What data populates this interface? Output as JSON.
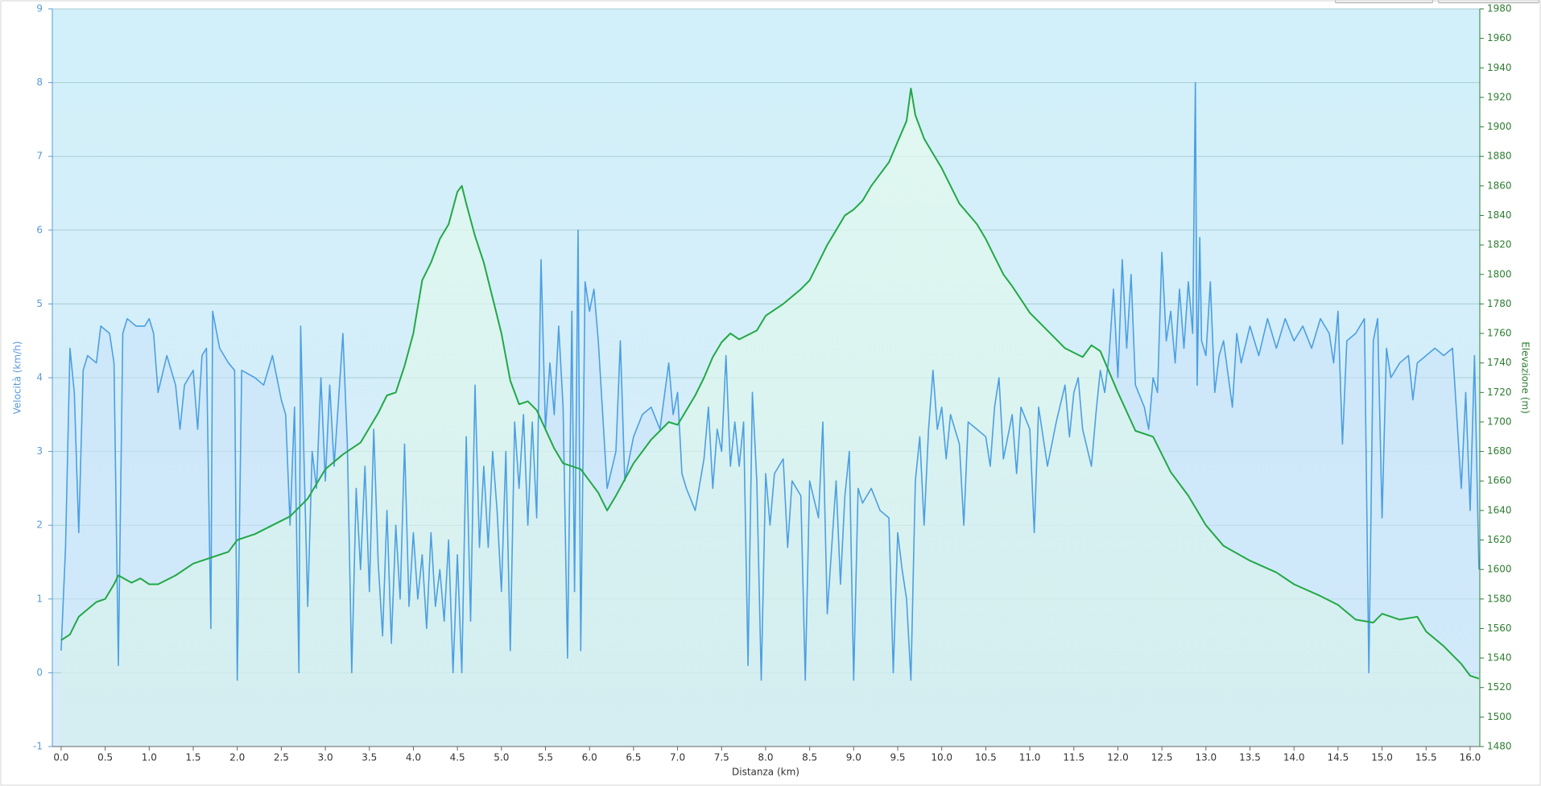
{
  "chart_data": {
    "type": "line",
    "x_label": "Distanza  (km)",
    "y_label": "Velocità (km/h)",
    "y2_label": "Elevazione (m)",
    "xlim": [
      -0.1,
      16.11
    ],
    "ylim": [
      -1,
      9
    ],
    "y2lim": [
      1480,
      1980
    ],
    "grid": true,
    "xticks": [
      {
        "value": 0,
        "label": "0.0"
      },
      0.5,
      {
        "value": 1,
        "label": "1.0"
      },
      1.5,
      {
        "value": 2,
        "label": "2.0"
      },
      2.5,
      {
        "value": 3,
        "label": "3.0"
      },
      3.5,
      {
        "value": 4,
        "label": "4.0"
      },
      4.5,
      {
        "value": 5,
        "label": "5.0"
      },
      5.5,
      {
        "value": 6,
        "label": "6.0"
      },
      6.5,
      {
        "value": 7,
        "label": "7.0"
      },
      7.5,
      {
        "value": 8,
        "label": "8.0"
      },
      8.5,
      {
        "value": 9,
        "label": "9.0"
      },
      9.5,
      {
        "value": 10,
        "label": "10.0"
      },
      10.5,
      {
        "value": 11,
        "label": "11.0"
      },
      11.5,
      {
        "value": 12,
        "label": "12.0"
      },
      12.5,
      {
        "value": 13,
        "label": "13.0"
      },
      13.5,
      {
        "value": 14,
        "label": "14.0"
      },
      14.5,
      {
        "value": 15,
        "label": "15.0"
      },
      15.5,
      {
        "value": 16,
        "label": "16.0"
      }
    ],
    "yticks": [
      -1,
      0,
      1,
      2,
      3,
      4,
      5,
      6,
      7,
      8,
      9
    ],
    "y2ticks": [
      1480,
      1500,
      1520,
      1540,
      1560,
      1580,
      1600,
      1620,
      1640,
      1660,
      1680,
      1700,
      1720,
      1740,
      1760,
      1780,
      1800,
      1820,
      1840,
      1860,
      1880,
      1900,
      1920,
      1940,
      1960,
      1980
    ],
    "series": [
      {
        "color": "#4c9fe2",
        "axis": "y",
        "x": [
          0.0,
          0.05,
          0.1,
          0.15,
          0.2,
          0.25,
          0.3,
          0.4,
          0.45,
          0.55,
          0.6,
          0.65,
          0.7,
          0.75,
          0.85,
          0.95,
          1.0,
          1.05,
          1.1,
          1.2,
          1.3,
          1.35,
          1.4,
          1.5,
          1.55,
          1.6,
          1.65,
          1.7,
          1.72,
          1.8,
          1.9,
          1.97,
          2.0,
          2.05,
          2.2,
          2.3,
          2.4,
          2.5,
          2.55,
          2.6,
          2.65,
          2.7,
          2.72,
          2.8,
          2.85,
          2.9,
          2.95,
          3.0,
          3.05,
          3.1,
          3.15,
          3.2,
          3.25,
          3.3,
          3.35,
          3.4,
          3.45,
          3.5,
          3.55,
          3.6,
          3.65,
          3.7,
          3.75,
          3.8,
          3.85,
          3.9,
          3.95,
          4.0,
          4.05,
          4.1,
          4.15,
          4.2,
          4.25,
          4.3,
          4.35,
          4.4,
          4.45,
          4.5,
          4.55,
          4.6,
          4.65,
          4.7,
          4.75,
          4.8,
          4.85,
          4.9,
          4.95,
          5.0,
          5.05,
          5.1,
          5.15,
          5.2,
          5.25,
          5.3,
          5.35,
          5.4,
          5.45,
          5.5,
          5.55,
          5.6,
          5.65,
          5.7,
          5.75,
          5.8,
          5.83,
          5.87,
          5.9,
          5.95,
          6.0,
          6.05,
          6.1,
          6.15,
          6.2,
          6.3,
          6.35,
          6.4,
          6.5,
          6.6,
          6.7,
          6.8,
          6.9,
          6.95,
          7.0,
          7.05,
          7.1,
          7.2,
          7.3,
          7.35,
          7.4,
          7.45,
          7.5,
          7.55,
          7.6,
          7.65,
          7.7,
          7.75,
          7.8,
          7.85,
          7.9,
          7.95,
          8.0,
          8.05,
          8.1,
          8.2,
          8.25,
          8.3,
          8.4,
          8.45,
          8.5,
          8.6,
          8.65,
          8.7,
          8.8,
          8.85,
          8.9,
          8.95,
          9.0,
          9.05,
          9.1,
          9.2,
          9.3,
          9.4,
          9.45,
          9.5,
          9.55,
          9.6,
          9.65,
          9.7,
          9.75,
          9.8,
          9.85,
          9.9,
          9.95,
          10.0,
          10.05,
          10.1,
          10.2,
          10.25,
          10.3,
          10.4,
          10.5,
          10.55,
          10.6,
          10.65,
          10.7,
          10.8,
          10.85,
          10.9,
          11.0,
          11.05,
          11.1,
          11.2,
          11.3,
          11.4,
          11.45,
          11.5,
          11.55,
          11.6,
          11.7,
          11.75,
          11.8,
          11.85,
          11.9,
          11.95,
          12.0,
          12.05,
          12.1,
          12.15,
          12.2,
          12.3,
          12.35,
          12.4,
          12.45,
          12.5,
          12.55,
          12.6,
          12.65,
          12.7,
          12.75,
          12.8,
          12.85,
          12.88,
          12.9,
          12.93,
          12.95,
          13.0,
          13.05,
          13.1,
          13.15,
          13.2,
          13.3,
          13.35,
          13.4,
          13.5,
          13.6,
          13.7,
          13.8,
          13.9,
          14.0,
          14.1,
          14.2,
          14.3,
          14.4,
          14.45,
          14.5,
          14.55,
          14.6,
          14.7,
          14.8,
          14.85,
          14.9,
          14.95,
          15.0,
          15.05,
          15.1,
          15.2,
          15.3,
          15.35,
          15.4,
          15.5,
          15.6,
          15.7,
          15.8,
          15.9,
          15.95,
          16.0,
          16.05,
          16.1
        ],
        "values": [
          0.3,
          1.7,
          4.4,
          3.8,
          1.9,
          4.1,
          4.3,
          4.2,
          4.7,
          4.6,
          4.2,
          0.1,
          4.6,
          4.8,
          4.7,
          4.7,
          4.8,
          4.6,
          3.8,
          4.3,
          3.9,
          3.3,
          3.9,
          4.1,
          3.3,
          4.3,
          4.4,
          0.6,
          4.9,
          4.4,
          4.2,
          4.1,
          -0.1,
          4.1,
          4.0,
          3.9,
          4.3,
          3.7,
          3.5,
          2.0,
          3.6,
          0.0,
          4.7,
          0.9,
          3.0,
          2.5,
          4.0,
          2.6,
          3.9,
          2.8,
          3.7,
          4.6,
          3.1,
          0.0,
          2.5,
          1.4,
          2.8,
          1.1,
          3.3,
          1.5,
          0.5,
          2.2,
          0.4,
          2.0,
          1.0,
          3.1,
          0.9,
          1.9,
          1.0,
          1.6,
          0.6,
          1.9,
          0.9,
          1.4,
          0.7,
          1.8,
          0.0,
          1.6,
          0.0,
          3.2,
          0.7,
          3.9,
          1.7,
          2.8,
          1.7,
          3.0,
          2.2,
          1.1,
          3.0,
          0.3,
          3.4,
          2.5,
          3.5,
          2.0,
          3.4,
          2.1,
          5.6,
          3.3,
          4.2,
          3.5,
          4.7,
          3.6,
          0.2,
          4.9,
          1.1,
          6.0,
          0.3,
          5.3,
          4.9,
          5.2,
          4.5,
          3.5,
          2.5,
          3.0,
          4.5,
          2.6,
          3.2,
          3.5,
          3.6,
          3.3,
          4.2,
          3.5,
          3.8,
          2.7,
          2.5,
          2.2,
          2.9,
          3.6,
          2.5,
          3.3,
          3.0,
          4.3,
          2.8,
          3.4,
          2.8,
          3.4,
          0.1,
          3.8,
          2.6,
          -0.1,
          2.7,
          2.0,
          2.7,
          2.9,
          1.7,
          2.6,
          2.4,
          -0.1,
          2.6,
          2.1,
          3.4,
          0.8,
          2.6,
          1.2,
          2.4,
          3.0,
          -0.1,
          2.5,
          2.3,
          2.5,
          2.2,
          2.1,
          0.0,
          1.9,
          1.4,
          1.0,
          -0.1,
          2.6,
          3.2,
          2.0,
          3.3,
          4.1,
          3.3,
          3.6,
          2.9,
          3.5,
          3.1,
          2.0,
          3.4,
          3.3,
          3.2,
          2.8,
          3.6,
          4.0,
          2.9,
          3.5,
          2.7,
          3.6,
          3.3,
          1.9,
          3.6,
          2.8,
          3.4,
          3.9,
          3.2,
          3.8,
          4.0,
          3.3,
          2.8,
          3.5,
          4.1,
          3.8,
          4.3,
          5.2,
          4.0,
          5.6,
          4.4,
          5.4,
          3.9,
          3.6,
          3.3,
          4.0,
          3.8,
          5.7,
          4.5,
          4.9,
          4.2,
          5.2,
          4.4,
          5.3,
          4.6,
          8.0,
          3.9,
          5.9,
          4.5,
          4.3,
          5.3,
          3.8,
          4.3,
          4.5,
          3.6,
          4.6,
          4.2,
          4.7,
          4.3,
          4.8,
          4.4,
          4.8,
          4.5,
          4.7,
          4.4,
          4.8,
          4.6,
          4.2,
          4.9,
          3.1,
          4.5,
          4.6,
          4.8,
          0.0,
          4.5,
          4.8,
          2.1,
          4.4,
          4.0,
          4.2,
          4.3,
          3.7,
          4.2,
          4.3,
          4.4,
          4.3,
          4.4,
          2.5,
          3.8,
          2.2,
          4.3,
          1.4
        ]
      },
      {
        "color": "#22a845",
        "axis": "y2",
        "x": [
          0.0,
          0.1,
          0.2,
          0.4,
          0.5,
          0.6,
          0.65,
          0.8,
          0.9,
          1.0,
          1.1,
          1.3,
          1.5,
          1.7,
          1.9,
          2.0,
          2.2,
          2.4,
          2.6,
          2.8,
          3.0,
          3.2,
          3.4,
          3.6,
          3.7,
          3.8,
          3.9,
          4.0,
          4.1,
          4.2,
          4.3,
          4.4,
          4.5,
          4.55,
          4.6,
          4.7,
          4.8,
          4.9,
          5.0,
          5.1,
          5.2,
          5.3,
          5.4,
          5.6,
          5.7,
          5.9,
          6.0,
          6.1,
          6.2,
          6.3,
          6.5,
          6.7,
          6.9,
          7.0,
          7.2,
          7.3,
          7.4,
          7.5,
          7.6,
          7.7,
          7.9,
          8.0,
          8.2,
          8.4,
          8.5,
          8.6,
          8.7,
          8.8,
          8.9,
          9.0,
          9.1,
          9.2,
          9.3,
          9.4,
          9.5,
          9.6,
          9.65,
          9.7,
          9.8,
          10.0,
          10.2,
          10.4,
          10.5,
          10.6,
          10.7,
          10.8,
          11.0,
          11.2,
          11.4,
          11.6,
          11.7,
          11.8,
          12.0,
          12.2,
          12.4,
          12.6,
          12.8,
          13.0,
          13.2,
          13.5,
          13.8,
          14.0,
          14.3,
          14.5,
          14.7,
          14.9,
          15.0,
          15.2,
          15.4,
          15.5,
          15.7,
          15.9,
          16.0,
          16.1
        ],
        "values": [
          1552,
          1556,
          1568,
          1578,
          1580,
          1590,
          1596,
          1591,
          1594,
          1590,
          1590,
          1596,
          1604,
          1608,
          1612,
          1620,
          1624,
          1630,
          1636,
          1648,
          1668,
          1678,
          1686,
          1706,
          1718,
          1720,
          1738,
          1760,
          1796,
          1808,
          1824,
          1834,
          1856,
          1860,
          1848,
          1826,
          1808,
          1784,
          1760,
          1728,
          1712,
          1714,
          1708,
          1682,
          1672,
          1668,
          1660,
          1652,
          1640,
          1650,
          1672,
          1688,
          1700,
          1698,
          1718,
          1730,
          1744,
          1754,
          1760,
          1756,
          1762,
          1772,
          1780,
          1790,
          1796,
          1808,
          1820,
          1830,
          1840,
          1844,
          1850,
          1860,
          1868,
          1876,
          1890,
          1904,
          1926,
          1908,
          1892,
          1872,
          1848,
          1834,
          1824,
          1812,
          1800,
          1792,
          1774,
          1762,
          1750,
          1744,
          1752,
          1748,
          1720,
          1694,
          1690,
          1666,
          1650,
          1630,
          1616,
          1606,
          1598,
          1590,
          1582,
          1576,
          1566,
          1564,
          1570,
          1566,
          1568,
          1558,
          1548,
          1536,
          1528,
          1526
        ]
      }
    ]
  }
}
